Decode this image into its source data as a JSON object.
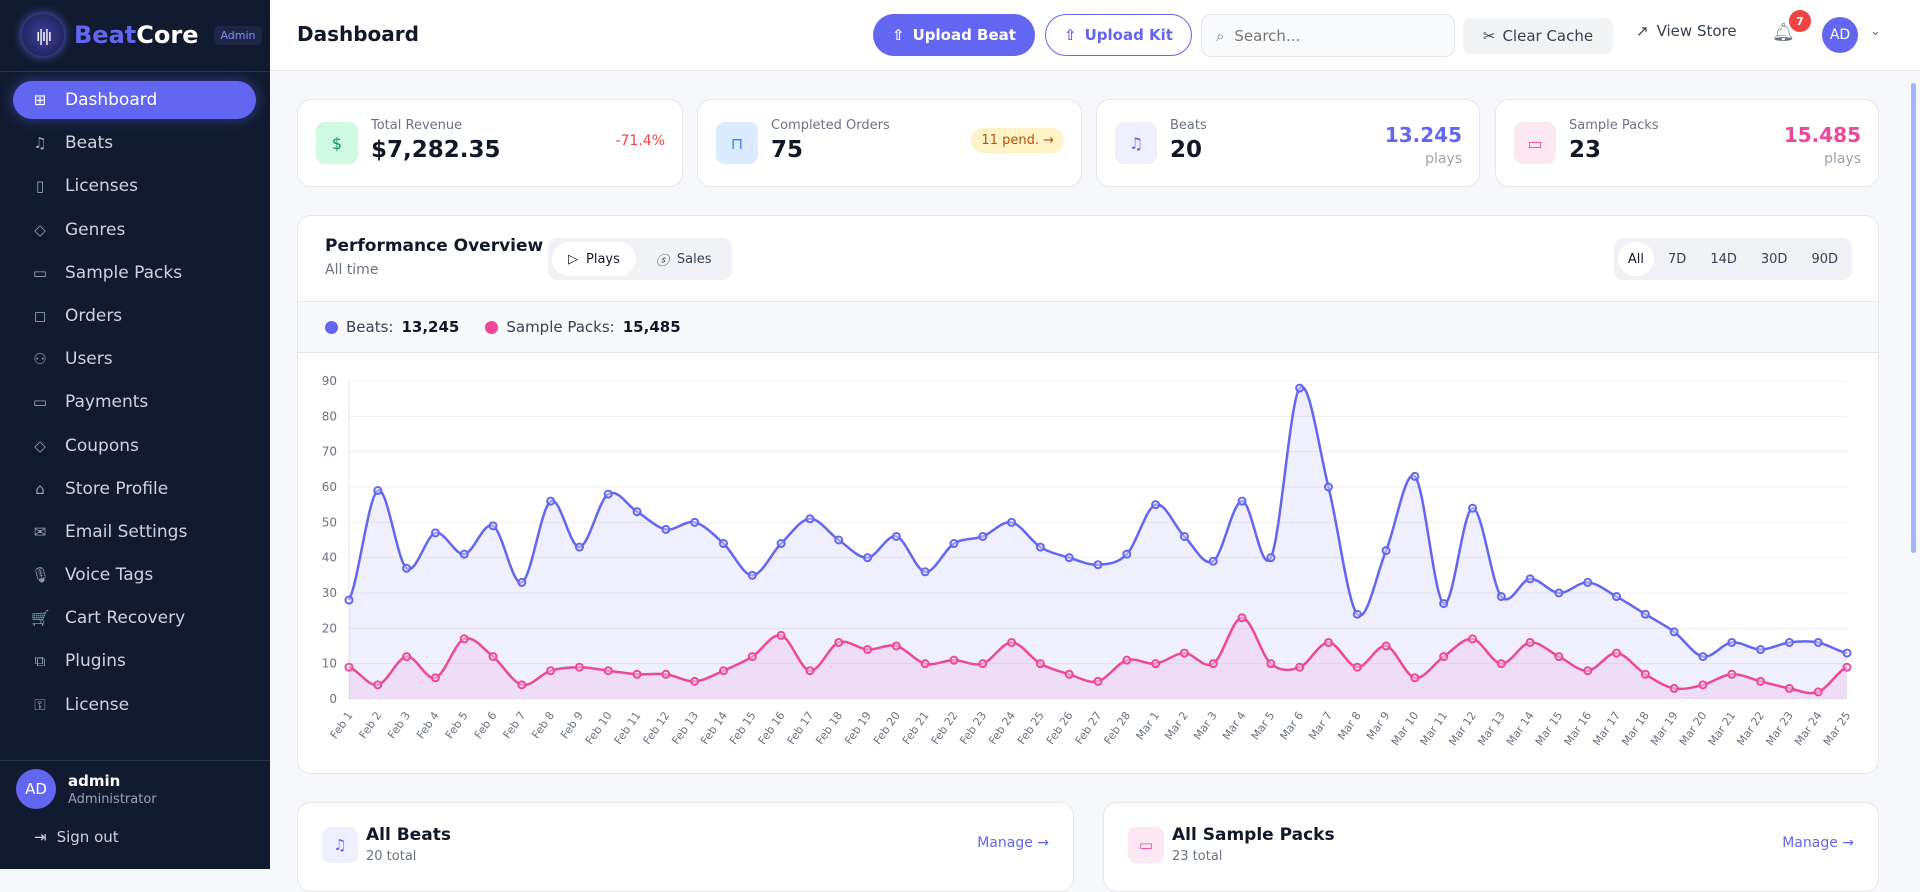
{
  "brand": {
    "name_a": "Beat",
    "name_b": "Core",
    "badge": "Admin"
  },
  "sidebar": {
    "items": [
      {
        "label": "Dashboard",
        "icon": "grid-icon",
        "glyph": "⊞",
        "active": true
      },
      {
        "label": "Beats",
        "icon": "music-icon",
        "glyph": "♫"
      },
      {
        "label": "Licenses",
        "icon": "file-icon",
        "glyph": "▯"
      },
      {
        "label": "Genres",
        "icon": "tag-icon",
        "glyph": "◇"
      },
      {
        "label": "Sample Packs",
        "icon": "archive-icon",
        "glyph": "▭"
      },
      {
        "label": "Orders",
        "icon": "bag-icon",
        "glyph": "◻"
      },
      {
        "label": "Users",
        "icon": "users-icon",
        "glyph": "⚇"
      },
      {
        "label": "Payments",
        "icon": "card-icon",
        "glyph": "▭"
      },
      {
        "label": "Coupons",
        "icon": "tag-icon",
        "glyph": "◇"
      },
      {
        "label": "Store Profile",
        "icon": "store-icon",
        "glyph": "⌂"
      },
      {
        "label": "Email Settings",
        "icon": "mail-icon",
        "glyph": "✉"
      },
      {
        "label": "Voice Tags",
        "icon": "mic-icon",
        "glyph": "🎙"
      },
      {
        "label": "Cart Recovery",
        "icon": "cart-icon",
        "glyph": "🛒"
      },
      {
        "label": "Plugins",
        "icon": "puzzle-icon",
        "glyph": "⧉"
      },
      {
        "label": "License",
        "icon": "key-icon",
        "glyph": "⚿"
      }
    ],
    "user": {
      "initials": "AD",
      "name": "admin",
      "role": "Administrator"
    },
    "signout": "Sign out"
  },
  "header": {
    "title": "Dashboard",
    "upload_beat": "Upload Beat",
    "upload_kit": "Upload Kit",
    "search_placeholder": "Search...",
    "clear_cache": "Clear Cache",
    "view_store": "View Store",
    "notifications": "7",
    "avatar": "AD"
  },
  "stats": [
    {
      "label": "Total Revenue",
      "value": "$7,282.35",
      "change": "-71.4%",
      "color": "#10b981"
    },
    {
      "label": "Completed Orders",
      "value": "75",
      "pending": "11 pend. →"
    },
    {
      "label": "Beats",
      "value": "20",
      "plays": "13.245",
      "plays_label": "plays",
      "color": "#6366f1"
    },
    {
      "label": "Sample Packs",
      "value": "23",
      "plays": "15.485",
      "plays_label": "plays",
      "color": "#ec4899"
    }
  ],
  "performance": {
    "title": "Performance Overview",
    "subtitle": "All time",
    "tabs": [
      "Plays",
      "Sales"
    ],
    "active_tab": "Plays",
    "ranges": [
      "All",
      "7D",
      "14D",
      "30D",
      "90D"
    ],
    "active_range": "All",
    "legend": [
      {
        "label": "Beats:",
        "total": "13,245",
        "color": "#6366f1"
      },
      {
        "label": "Sample Packs:",
        "total": "15,485",
        "color": "#ec4899"
      }
    ]
  },
  "chart_data": {
    "type": "area",
    "ylim": [
      0,
      90
    ],
    "yticks": [
      0,
      10,
      20,
      30,
      40,
      50,
      60,
      70,
      80,
      90
    ],
    "grid": true,
    "x": [
      "Feb 1",
      "Feb 2",
      "Feb 3",
      "Feb 4",
      "Feb 5",
      "Feb 6",
      "Feb 7",
      "Feb 8",
      "Feb 9",
      "Feb 10",
      "Feb 11",
      "Feb 12",
      "Feb 13",
      "Feb 14",
      "Feb 15",
      "Feb 16",
      "Feb 17",
      "Feb 18",
      "Feb 19",
      "Feb 20",
      "Feb 21",
      "Feb 22",
      "Feb 23",
      "Feb 24",
      "Feb 25",
      "Feb 26",
      "Feb 27",
      "Feb 28",
      "Mar 1",
      "Mar 2",
      "Mar 3",
      "Mar 4",
      "Mar 5",
      "Mar 6",
      "Mar 7",
      "Mar 8",
      "Mar 9",
      "Mar 10",
      "Mar 11",
      "Mar 12",
      "Mar 13",
      "Mar 14",
      "Mar 15",
      "Mar 16",
      "Mar 17",
      "Mar 18",
      "Mar 19",
      "Mar 20",
      "Mar 21",
      "Mar 22",
      "Mar 23",
      "Mar 24",
      "Mar 25"
    ],
    "series": [
      {
        "name": "Beats",
        "color": "#6366f1",
        "values": [
          28,
          59,
          37,
          47,
          41,
          49,
          33,
          56,
          43,
          58,
          53,
          48,
          50,
          44,
          35,
          44,
          51,
          45,
          40,
          46,
          36,
          44,
          46,
          50,
          43,
          40,
          38,
          41,
          55,
          46,
          39,
          56,
          40,
          88,
          60,
          24,
          42,
          63,
          27,
          54,
          29,
          34,
          30,
          33,
          29,
          24,
          19,
          12,
          16,
          14,
          16,
          16,
          13
        ]
      },
      {
        "name": "Sample Packs",
        "color": "#ec4899",
        "values": [
          9,
          4,
          12,
          6,
          17,
          12,
          4,
          8,
          9,
          8,
          7,
          7,
          5,
          8,
          12,
          18,
          8,
          16,
          14,
          15,
          10,
          11,
          10,
          16,
          10,
          7,
          5,
          11,
          10,
          13,
          10,
          23,
          10,
          9,
          16,
          9,
          15,
          6,
          12,
          17,
          10,
          16,
          12,
          8,
          13,
          7,
          3,
          4,
          7,
          5,
          3,
          2,
          9
        ]
      }
    ]
  },
  "lists": [
    {
      "title": "All Beats",
      "count": "20 total",
      "manage": "Manage →"
    },
    {
      "title": "All Sample Packs",
      "count": "23 total",
      "manage": "Manage →"
    }
  ]
}
